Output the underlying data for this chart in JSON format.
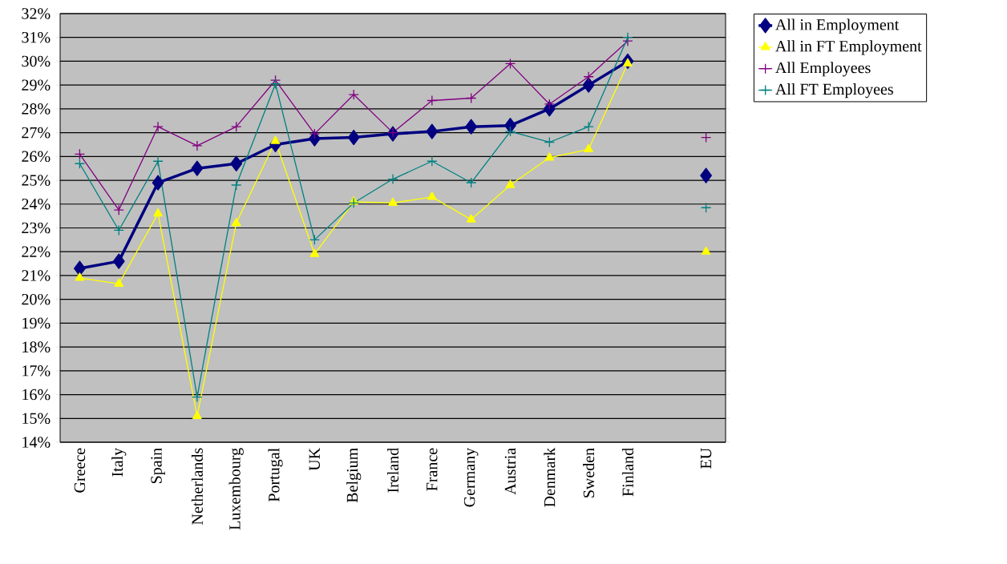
{
  "chart_data": {
    "type": "line",
    "categories": [
      "Greece",
      "Italy",
      "Spain",
      "Netherlands",
      "Luxembourg",
      "Portugal",
      "UK",
      "Belgium",
      "Ireland",
      "France",
      "Germany",
      "Austria",
      "Denmark",
      "Sweden",
      "Finland",
      null,
      "EU"
    ],
    "series": [
      {
        "name": "All in Employment",
        "color": "#000080",
        "marker": "diamond",
        "values": [
          21.3,
          21.6,
          24.9,
          25.5,
          25.7,
          26.5,
          26.75,
          26.8,
          26.95,
          27.05,
          27.25,
          27.3,
          28.0,
          29.0,
          30.0,
          null,
          25.2
        ]
      },
      {
        "name": "All in FT Employment",
        "color": "#ffff00",
        "marker": "triangle",
        "values": [
          20.9,
          20.65,
          23.6,
          15.1,
          23.2,
          26.65,
          21.9,
          24.1,
          24.05,
          24.3,
          23.35,
          24.8,
          25.95,
          26.3,
          29.9,
          null,
          22.0
        ]
      },
      {
        "name": "All Employees",
        "color": "#800080",
        "marker": "cross",
        "values": [
          26.1,
          23.75,
          27.25,
          26.45,
          27.25,
          29.2,
          26.95,
          28.6,
          27.0,
          28.35,
          28.45,
          29.9,
          28.2,
          29.35,
          30.85,
          null,
          26.8
        ]
      },
      {
        "name": "All FT Employees",
        "color": "#008080",
        "marker": "cross",
        "values": [
          25.7,
          22.9,
          25.8,
          15.9,
          24.8,
          29.05,
          22.5,
          24.05,
          25.05,
          25.8,
          24.9,
          27.05,
          26.6,
          27.25,
          31.0,
          null,
          23.85
        ]
      }
    ],
    "ylim": [
      14,
      32
    ],
    "yticks": [
      {
        "value": 14,
        "label": "14%"
      },
      {
        "value": 15,
        "label": "15%"
      },
      {
        "value": 16,
        "label": "16%"
      },
      {
        "value": 17,
        "label": "17%"
      },
      {
        "value": 18,
        "label": "18%"
      },
      {
        "value": 19,
        "label": "19%"
      },
      {
        "value": 20,
        "label": "20%"
      },
      {
        "value": 21,
        "label": "21%"
      },
      {
        "value": 22,
        "label": "22%"
      },
      {
        "value": 23,
        "label": "23%"
      },
      {
        "value": 24,
        "label": "24%"
      },
      {
        "value": 25,
        "label": "25%"
      },
      {
        "value": 26,
        "label": "26%"
      },
      {
        "value": 27,
        "label": "27%"
      },
      {
        "value": 28,
        "label": "28%"
      },
      {
        "value": 29,
        "label": "29%"
      },
      {
        "value": 30,
        "label": "30%"
      },
      {
        "value": 31,
        "label": "31%"
      },
      {
        "value": 32,
        "label": "32%"
      }
    ],
    "grid": "y",
    "legend": "top right"
  }
}
